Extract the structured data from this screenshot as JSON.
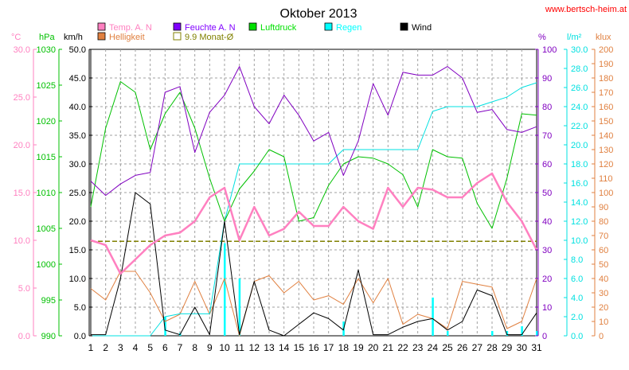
{
  "chart_data": {
    "type": "line",
    "title": "Oktober 2013",
    "source": "www.bertsch-heim.at",
    "x": [
      1,
      2,
      3,
      4,
      5,
      6,
      7,
      8,
      9,
      10,
      11,
      12,
      13,
      14,
      15,
      16,
      17,
      18,
      19,
      20,
      21,
      22,
      23,
      24,
      25,
      26,
      27,
      28,
      29,
      30,
      31
    ],
    "grid": true,
    "legend_placement": "top",
    "axes": {
      "temp": {
        "unit": "°C",
        "min": 0,
        "max": 30,
        "ticks": [
          "0.0",
          "5.0",
          "10.0",
          "15.0",
          "20.0",
          "25.0",
          "30.0"
        ],
        "color": "#ff80c0"
      },
      "pressure": {
        "unit": "hPa",
        "min": 990,
        "max": 1030,
        "ticks": [
          "990",
          "995",
          "1000",
          "1005",
          "1010",
          "1015",
          "1020",
          "1025",
          "1030"
        ],
        "color": "#00c000"
      },
      "wind": {
        "unit": "km/h",
        "min": 0,
        "max": 50,
        "ticks": [
          "0.0",
          "5.0",
          "10.0",
          "15.0",
          "20.0",
          "25.0",
          "30.0",
          "35.0",
          "40.0",
          "45.0",
          "50.0"
        ],
        "color": "#000000"
      },
      "humidity": {
        "unit": "%",
        "min": 0,
        "max": 100,
        "ticks": [
          "0",
          "10",
          "20",
          "30",
          "40",
          "50",
          "60",
          "70",
          "80",
          "90",
          "100"
        ],
        "color": "#8000c0"
      },
      "rain": {
        "unit": "l/m²",
        "min": 0,
        "max": 30,
        "ticks": [
          "0.0",
          "2.0",
          "4.0",
          "6.0",
          "8.0",
          "10.0",
          "12.0",
          "14.0",
          "16.0",
          "18.0",
          "20.0",
          "22.0",
          "24.0",
          "26.0",
          "28.0",
          "30.0"
        ],
        "color": "#00e0e0"
      },
      "light": {
        "unit": "klux",
        "min": 0,
        "max": 200,
        "ticks": [
          "0",
          "10",
          "20",
          "30",
          "40",
          "50",
          "60",
          "70",
          "80",
          "90",
          "100",
          "110",
          "120",
          "130",
          "140",
          "150",
          "160",
          "170",
          "180",
          "190",
          "200"
        ],
        "color": "#e08040"
      }
    },
    "legend": [
      {
        "name": "Temp. A. N",
        "color": "#ff80c0",
        "type": "fill"
      },
      {
        "name": "Feuchte A. N",
        "color": "#8000ff",
        "type": "fill"
      },
      {
        "name": "Luftdruck",
        "color": "#00e000",
        "type": "fill"
      },
      {
        "name": "Regen",
        "color": "#00ffff",
        "type": "fill"
      },
      {
        "name": "Wind",
        "color": "#000000",
        "type": "fill"
      },
      {
        "name": "Helligkeit",
        "color": "#e08040",
        "type": "fill"
      },
      {
        "name": "9.9 Monat-Ø",
        "color": "#808000",
        "type": "outline"
      }
    ],
    "series": [
      {
        "name": "Temp. A. N",
        "axis": "temp",
        "color": "#ff80c0",
        "width": 2.5,
        "values": [
          10.0,
          9.5,
          6.5,
          8.0,
          9.5,
          10.5,
          10.8,
          12.0,
          14.5,
          15.5,
          10.0,
          13.5,
          10.5,
          11.2,
          13.0,
          11.5,
          11.5,
          13.5,
          12.0,
          11.2,
          15.5,
          13.5,
          15.5,
          15.3,
          14.5,
          14.5,
          16.0,
          17.0,
          14.0,
          12.0,
          9.0
        ]
      },
      {
        "name": "Feuchte A. N",
        "axis": "humidity",
        "color": "#8000c0",
        "width": 1,
        "values": [
          54,
          49,
          53,
          56,
          57,
          85,
          87,
          64,
          78,
          84,
          94,
          80,
          74,
          84,
          77,
          68,
          71,
          56,
          68,
          88,
          77,
          92,
          91,
          91,
          94,
          90,
          78,
          79,
          72,
          71,
          73
        ]
      },
      {
        "name": "Luftdruck",
        "axis": "pressure",
        "color": "#00c000",
        "width": 1,
        "values": [
          1008,
          1019,
          1025.5,
          1024,
          1016,
          1021,
          1024,
          1019,
          1012,
          1006,
          1010.5,
          1013,
          1016,
          1015,
          1006,
          1006.5,
          1011,
          1014,
          1015,
          1014.8,
          1014,
          1012.5,
          1008,
          1016,
          1015,
          1014.8,
          1008.5,
          1005,
          1012,
          1021,
          1020.8
        ]
      },
      {
        "name": "Regen",
        "axis": "rain",
        "color": "#00e0e0",
        "width": 1,
        "values": [
          0,
          0,
          0,
          0,
          0,
          2.0,
          2.3,
          2.3,
          2.3,
          12.0,
          18.0,
          18.0,
          18.0,
          18.0,
          18.0,
          18.0,
          18.0,
          19.5,
          19.5,
          19.5,
          19.5,
          19.5,
          19.5,
          23.5,
          24.0,
          24.0,
          24.0,
          24.5,
          25.0,
          26.0,
          26.5
        ]
      },
      {
        "name": "Regen Tag",
        "axis": "rain",
        "color": "#00ffff",
        "type": "bar",
        "values": [
          0,
          0,
          0,
          0,
          0,
          2.0,
          0.3,
          0,
          0,
          9.7,
          6.0,
          0,
          0,
          0,
          0,
          0,
          0,
          1.5,
          0,
          0,
          0,
          0,
          0,
          4.0,
          0.5,
          0,
          0,
          0.5,
          0.5,
          1.0,
          0.5
        ]
      },
      {
        "name": "Wind",
        "axis": "wind",
        "color": "#000000",
        "width": 1,
        "values": [
          0.2,
          0.2,
          10.0,
          25.0,
          23.0,
          1.0,
          0.2,
          5.0,
          0.2,
          20.0,
          0.2,
          9.5,
          1.0,
          0.0,
          2.0,
          4.0,
          3.0,
          1.0,
          11.5,
          0.2,
          0.2,
          1.5,
          2.5,
          3.0,
          1.0,
          2.5,
          8.0,
          7.0,
          0.2,
          0.2,
          4.0
        ]
      },
      {
        "name": "Helligkeit",
        "axis": "light",
        "color": "#e08040",
        "width": 1,
        "values": [
          33,
          25,
          45,
          45,
          30,
          10,
          15,
          38,
          15,
          40,
          0,
          38,
          42,
          30,
          38,
          25,
          28,
          22,
          40,
          23,
          40,
          8,
          15,
          12,
          5,
          38,
          36,
          34,
          5,
          10,
          40
        ]
      },
      {
        "name": "9.9 Monat-Ø",
        "axis": "temp",
        "color": "#808000",
        "width": 1.5,
        "dashed": true,
        "constant": 9.9
      }
    ]
  }
}
